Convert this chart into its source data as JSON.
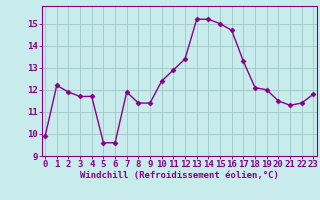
{
  "x": [
    0,
    1,
    2,
    3,
    4,
    5,
    6,
    7,
    8,
    9,
    10,
    11,
    12,
    13,
    14,
    15,
    16,
    17,
    18,
    19,
    20,
    21,
    22,
    23
  ],
  "y": [
    9.9,
    12.2,
    11.9,
    11.7,
    11.7,
    9.6,
    9.6,
    11.9,
    11.4,
    11.4,
    12.4,
    12.9,
    13.4,
    15.2,
    15.2,
    15.0,
    14.7,
    13.3,
    12.1,
    12.0,
    11.5,
    11.3,
    11.4,
    11.8
  ],
  "line_color": "#880088",
  "marker": "D",
  "marker_size": 2.5,
  "bg_color": "#c8ecec",
  "grid_color": "#a0c8c8",
  "xlabel": "Windchill (Refroidissement éolien,°C)",
  "xlabel_color": "#880088",
  "tick_color": "#880088",
  "spine_color": "#880088",
  "ylim": [
    9,
    15.8
  ],
  "yticks": [
    9,
    10,
    11,
    12,
    13,
    14,
    15
  ],
  "xticks": [
    0,
    1,
    2,
    3,
    4,
    5,
    6,
    7,
    8,
    9,
    10,
    11,
    12,
    13,
    14,
    15,
    16,
    17,
    18,
    19,
    20,
    21,
    22,
    23
  ],
  "tick_fontsize": 6.5,
  "xlabel_fontsize": 6.5,
  "linewidth": 1.0
}
